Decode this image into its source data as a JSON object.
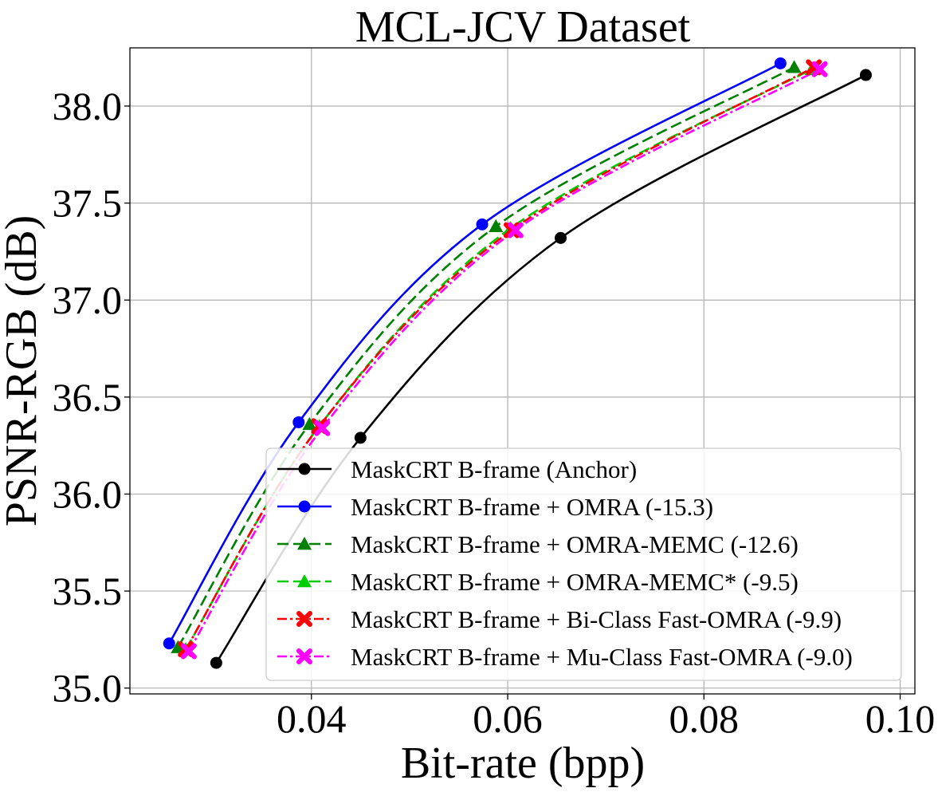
{
  "chart_data": {
    "type": "line",
    "title": "MCL-JCV Dataset",
    "xlabel": "Bit-rate (bpp)",
    "ylabel": "PSNR-RGB (dB)",
    "xlim": [
      0.0215,
      0.1015
    ],
    "ylim": [
      34.97,
      38.3
    ],
    "grid": true,
    "legend_position": "lower-right",
    "xticks": [
      {
        "value": 0.04,
        "label": "0.04"
      },
      {
        "value": 0.06,
        "label": "0.06"
      },
      {
        "value": 0.08,
        "label": "0.08"
      },
      {
        "value": 0.1,
        "label": "0.10"
      }
    ],
    "yticks": [
      {
        "value": 35.0,
        "label": "35.0"
      },
      {
        "value": 35.5,
        "label": "35.5"
      },
      {
        "value": 36.0,
        "label": "36.0"
      },
      {
        "value": 36.5,
        "label": "36.5"
      },
      {
        "value": 37.0,
        "label": "37.0"
      },
      {
        "value": 37.5,
        "label": "37.5"
      },
      {
        "value": 38.0,
        "label": "38.0"
      }
    ],
    "series": [
      {
        "name": "MaskCRT B-frame (Anchor)",
        "color": "#000000",
        "dash": "solid",
        "marker": "circle",
        "x": [
          0.0303,
          0.045,
          0.0654,
          0.0965
        ],
        "y": [
          35.13,
          36.29,
          37.32,
          38.16
        ]
      },
      {
        "name": "MaskCRT B-frame + OMRA (-15.3)",
        "color": "#0000ff",
        "dash": "solid",
        "marker": "circle",
        "x": [
          0.0255,
          0.0387,
          0.0574,
          0.0878
        ],
        "y": [
          35.23,
          36.37,
          37.39,
          38.22
        ]
      },
      {
        "name": "MaskCRT B-frame + OMRA-MEMC (-12.6)",
        "color": "#008000",
        "dash": "dashed",
        "marker": "triangle",
        "x": [
          0.0264,
          0.0398,
          0.0588,
          0.0892
        ],
        "y": [
          35.21,
          36.36,
          37.38,
          38.2
        ]
      },
      {
        "name": "MaskCRT B-frame + OMRA-MEMC* (-9.5)",
        "color": "#00cc00",
        "dash": "dashed",
        "marker": "triangle",
        "x": [
          0.0272,
          0.0408,
          0.0603,
          0.091
        ],
        "y": [
          35.2,
          36.35,
          37.37,
          38.19
        ]
      },
      {
        "name": "MaskCRT B-frame + Bi-Class Fast-OMRA (-9.9)",
        "color": "#ff0000",
        "dash": "dashdot",
        "marker": "x",
        "x": [
          0.0272,
          0.0408,
          0.0604,
          0.0912
        ],
        "y": [
          35.2,
          36.35,
          37.36,
          38.2
        ]
      },
      {
        "name": "MaskCRT B-frame + Mu-Class Fast-OMRA (-9.0)",
        "color": "#ff00ff",
        "dash": "dashdot",
        "marker": "x",
        "x": [
          0.0275,
          0.0411,
          0.0608,
          0.0918
        ],
        "y": [
          35.19,
          36.34,
          37.36,
          38.19
        ]
      }
    ]
  }
}
